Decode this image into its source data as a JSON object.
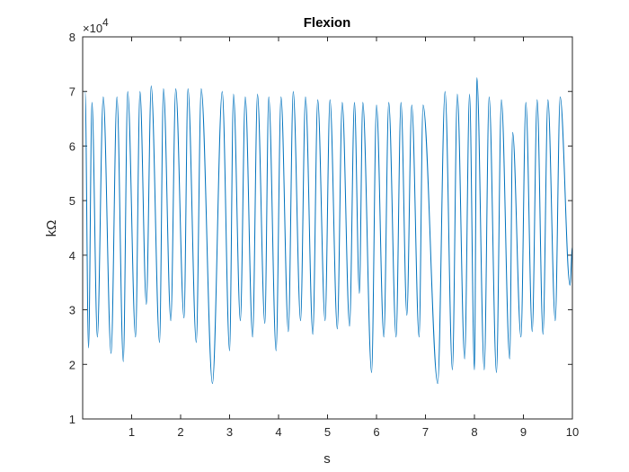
{
  "chart_data": {
    "type": "line",
    "title": "Flexion",
    "xlabel": "s",
    "ylabel": "kΩ",
    "y_exponent_base": "×10",
    "y_exponent_power": "4",
    "xlim": [
      0,
      10
    ],
    "ylim": [
      10000,
      80000
    ],
    "xticks": [
      1,
      2,
      3,
      4,
      5,
      6,
      7,
      8,
      9,
      10
    ],
    "yticks": [
      10000,
      20000,
      30000,
      40000,
      50000,
      60000,
      70000,
      80000
    ],
    "ytick_labels": [
      "1",
      "2",
      "3",
      "4",
      "5",
      "6",
      "7",
      "8"
    ],
    "grid": false,
    "line_color": "#0072BD",
    "series": [
      {
        "cycles": [
          {
            "x_max": 0.05,
            "y_max": 70000,
            "x_min": 0.12,
            "y_min": 23000
          },
          {
            "x_max": 0.19,
            "y_max": 68000,
            "x_min": 0.3,
            "y_min": 25000
          },
          {
            "x_max": 0.42,
            "y_max": 69000,
            "x_min": 0.58,
            "y_min": 22000
          },
          {
            "x_max": 0.7,
            "y_max": 69000,
            "x_min": 0.83,
            "y_min": 20500
          },
          {
            "x_max": 0.92,
            "y_max": 70000,
            "x_min": 1.08,
            "y_min": 25000
          },
          {
            "x_max": 1.17,
            "y_max": 70000,
            "x_min": 1.3,
            "y_min": 31000
          },
          {
            "x_max": 1.4,
            "y_max": 71000,
            "x_min": 1.57,
            "y_min": 24000
          },
          {
            "x_max": 1.65,
            "y_max": 70500,
            "x_min": 1.8,
            "y_min": 28000
          },
          {
            "x_max": 1.9,
            "y_max": 70500,
            "x_min": 2.07,
            "y_min": 28500
          },
          {
            "x_max": 2.15,
            "y_max": 70500,
            "x_min": 2.32,
            "y_min": 24000
          },
          {
            "x_max": 2.42,
            "y_max": 70500,
            "x_min": 2.65,
            "y_min": 16500
          },
          {
            "x_max": 2.85,
            "y_max": 70000,
            "x_min": 3.0,
            "y_min": 22500
          },
          {
            "x_max": 3.08,
            "y_max": 69500,
            "x_min": 3.22,
            "y_min": 28000
          },
          {
            "x_max": 3.32,
            "y_max": 69000,
            "x_min": 3.47,
            "y_min": 25000
          },
          {
            "x_max": 3.57,
            "y_max": 69500,
            "x_min": 3.72,
            "y_min": 27500
          },
          {
            "x_max": 3.8,
            "y_max": 69000,
            "x_min": 3.95,
            "y_min": 22500
          },
          {
            "x_max": 4.05,
            "y_max": 69000,
            "x_min": 4.2,
            "y_min": 26000
          },
          {
            "x_max": 4.3,
            "y_max": 70000,
            "x_min": 4.45,
            "y_min": 28000
          },
          {
            "x_max": 4.55,
            "y_max": 69000,
            "x_min": 4.7,
            "y_min": 25500
          },
          {
            "x_max": 4.8,
            "y_max": 68500,
            "x_min": 4.95,
            "y_min": 28000
          },
          {
            "x_max": 5.05,
            "y_max": 68500,
            "x_min": 5.2,
            "y_min": 26500
          },
          {
            "x_max": 5.3,
            "y_max": 68000,
            "x_min": 5.45,
            "y_min": 27000
          },
          {
            "x_max": 5.55,
            "y_max": 68000,
            "x_min": 5.65,
            "y_min": 33000
          },
          {
            "x_max": 5.72,
            "y_max": 68000,
            "x_min": 5.9,
            "y_min": 18500
          },
          {
            "x_max": 6.0,
            "y_max": 67500,
            "x_min": 6.15,
            "y_min": 25000
          },
          {
            "x_max": 6.25,
            "y_max": 68000,
            "x_min": 6.4,
            "y_min": 25000
          },
          {
            "x_max": 6.5,
            "y_max": 68000,
            "x_min": 6.62,
            "y_min": 29000
          },
          {
            "x_max": 6.72,
            "y_max": 67500,
            "x_min": 6.87,
            "y_min": 25000
          },
          {
            "x_max": 6.95,
            "y_max": 67500,
            "x_min": 7.25,
            "y_min": 16500
          },
          {
            "x_max": 7.4,
            "y_max": 70000,
            "x_min": 7.55,
            "y_min": 19000
          },
          {
            "x_max": 7.65,
            "y_max": 69500,
            "x_min": 7.8,
            "y_min": 21000
          },
          {
            "x_max": 7.9,
            "y_max": 69500,
            "x_min": 8.0,
            "y_min": 19000
          },
          {
            "x_max": 8.05,
            "y_max": 72500,
            "x_min": 8.2,
            "y_min": 19000
          },
          {
            "x_max": 8.3,
            "y_max": 69000,
            "x_min": 8.45,
            "y_min": 18500
          },
          {
            "x_max": 8.55,
            "y_max": 68500,
            "x_min": 8.72,
            "y_min": 21000
          },
          {
            "x_max": 8.78,
            "y_max": 62500,
            "x_min": 8.95,
            "y_min": 25000
          },
          {
            "x_max": 9.05,
            "y_max": 68000,
            "x_min": 9.18,
            "y_min": 26000
          },
          {
            "x_max": 9.28,
            "y_max": 68500,
            "x_min": 9.4,
            "y_min": 25500
          },
          {
            "x_max": 9.5,
            "y_max": 68500,
            "x_min": 9.65,
            "y_min": 28000
          },
          {
            "x_max": 9.75,
            "y_max": 69000,
            "x_min": 9.95,
            "y_min": 34500
          }
        ],
        "end": {
          "x": 10.0,
          "y": 41500
        }
      }
    ]
  }
}
